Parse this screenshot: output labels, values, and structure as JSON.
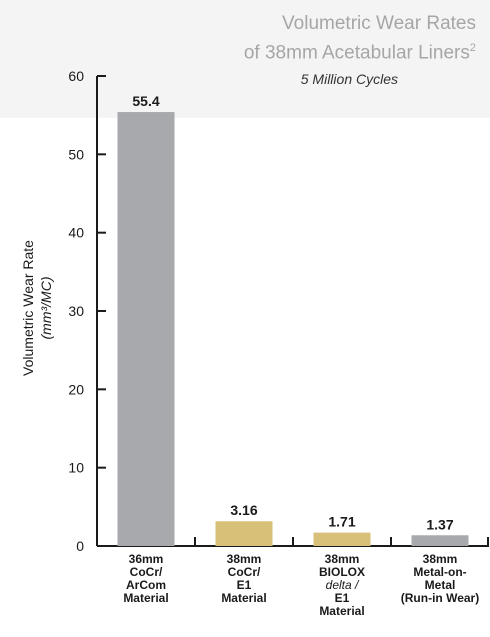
{
  "title_line1": "Volumetric Wear Rates",
  "title_line2": "of 38mm Acetabular Liners",
  "title_footnote": "2",
  "subtitle": "5 Million Cycles",
  "colors": {
    "gray_bar": "#a7a9ac",
    "gold_bar": "#d8c078",
    "axis": "#1a1a1a",
    "title": "#a6a6a6",
    "header_band": "#f4f4f4"
  },
  "chart_data": {
    "type": "bar",
    "ylabel": "Volumetric Wear Rate",
    "ylabel_unit": "(mm³/MC)",
    "ylim": [
      0,
      60
    ],
    "yticks": [
      0,
      10,
      20,
      30,
      40,
      50,
      60
    ],
    "grid": false,
    "categories": [
      {
        "lines": [
          "36mm",
          "CoCr/",
          "ArCom",
          "Material"
        ],
        "value": 55.4,
        "value_label": "55.4",
        "color": "gray"
      },
      {
        "lines": [
          "38mm",
          "CoCr/",
          "E1",
          "Material"
        ],
        "value": 3.16,
        "value_label": "3.16",
        "color": "gold"
      },
      {
        "lines": [
          "38mm",
          "BIOLOX",
          "delta /",
          "E1",
          "Material"
        ],
        "italic_line": 2,
        "value": 1.71,
        "value_label": "1.71",
        "color": "gold"
      },
      {
        "lines": [
          "38mm",
          "Metal-on-",
          "Metal",
          "(Run-in Wear)"
        ],
        "value": 1.37,
        "value_label": "1.37",
        "color": "gray"
      }
    ]
  }
}
